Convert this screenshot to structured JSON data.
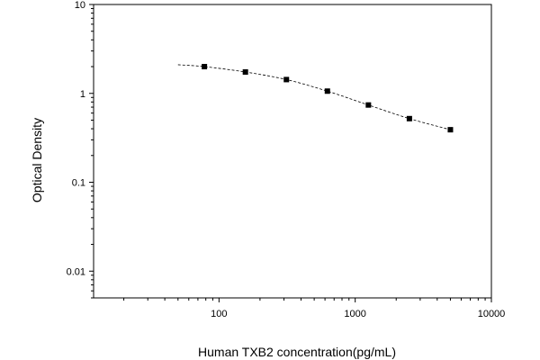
{
  "chart_data": {
    "type": "scatter",
    "title": "",
    "xlabel": "Human TXB2 concentration(pg/mL)",
    "ylabel": "Optical Density",
    "x_scale": "log",
    "y_scale": "log",
    "xlim": [
      12,
      10000
    ],
    "ylim": [
      0.005,
      10
    ],
    "x_ticks": [
      {
        "value": 100,
        "label": "100"
      },
      {
        "value": 1000,
        "label": "1000"
      },
      {
        "value": 10000,
        "label": "10000"
      }
    ],
    "y_ticks": [
      {
        "value": 10,
        "label": "10"
      },
      {
        "value": 1,
        "label": "1"
      },
      {
        "value": 0.1,
        "label": "0.1"
      },
      {
        "value": 0.01,
        "label": "0.01"
      }
    ],
    "grid": false,
    "series": [
      {
        "x": [
          78.13,
          156.25,
          312.5,
          625,
          1250,
          2500,
          5000
        ],
        "y": [
          2.0,
          1.74,
          1.43,
          1.06,
          0.74,
          0.52,
          0.39
        ],
        "marker": "square",
        "color": "#000000"
      }
    ],
    "fit_curve": {
      "style": "dashed",
      "color": "#000000",
      "x": [
        50,
        78.13,
        156.25,
        312.5,
        625,
        1250,
        2500,
        5000
      ],
      "y": [
        2.1,
        2.0,
        1.74,
        1.43,
        1.06,
        0.74,
        0.52,
        0.39
      ]
    }
  }
}
